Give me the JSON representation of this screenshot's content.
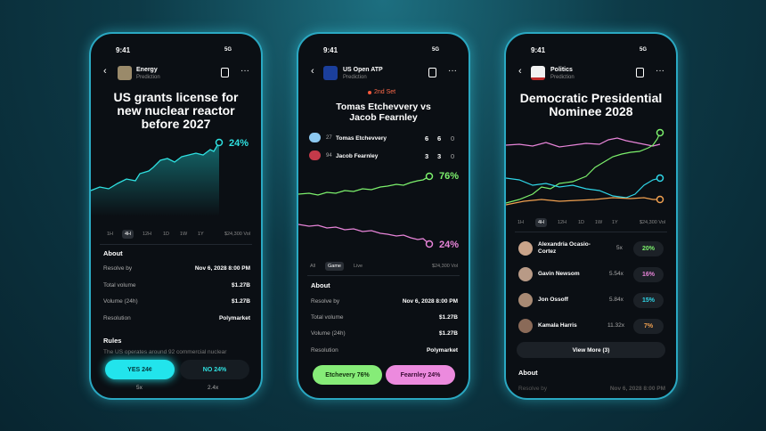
{
  "phones": [
    {
      "status": {
        "time": "9:41",
        "network": "5G"
      },
      "header": {
        "category": "Energy",
        "subtitle": "Prediction"
      },
      "title": "US grants license for new nuclear reactor before 2027",
      "chance": "24%",
      "tabs": [
        "1H",
        "4H",
        "12H",
        "1D",
        "1W",
        "1Y"
      ],
      "volume": "$24,300 Vol",
      "about": {
        "heading": "About",
        "rows": [
          [
            "Resolve by",
            "Nov 6, 2028 8:00 PM"
          ],
          [
            "Total volume",
            "$1.27B"
          ],
          [
            "Volume (24h)",
            "$1.27B"
          ],
          [
            "Resolution",
            "Polymarket"
          ]
        ]
      },
      "rules": {
        "heading": "Rules",
        "text": "The US operates around 92 commercial nuclear"
      },
      "buttons": [
        {
          "label": "YES 24¢",
          "multiplier": "5x"
        },
        {
          "label": "NO 24%",
          "multiplier": "2.4x"
        }
      ]
    },
    {
      "status": {
        "time": "9:41",
        "network": "5G"
      },
      "header": {
        "category": "US Open ATP",
        "subtitle": "Prediction"
      },
      "set": "2nd Set",
      "title": "Tomas Etchevvery vs Jacob Fearnley",
      "players": [
        {
          "rank": "27",
          "name": "Tomas Etchevvery",
          "scores": [
            "6",
            "6",
            "0"
          ]
        },
        {
          "rank": "94",
          "name": "Jacob Fearnley",
          "scores": [
            "3",
            "3",
            "0"
          ]
        }
      ],
      "chances": [
        "76%",
        "24%"
      ],
      "tabs": [
        "All",
        "Game",
        "Live"
      ],
      "volume": "$24,300 Vol",
      "about": {
        "heading": "About",
        "rows": [
          [
            "Resolve by",
            "Nov 6, 2028 8:00 PM"
          ],
          [
            "Total volume",
            "$1.27B"
          ],
          [
            "Volume (24h)",
            "$1.27B"
          ],
          [
            "Resolution",
            "Polymarket"
          ]
        ]
      },
      "buttons": [
        "Etchevery 76%",
        "Fearnley 24%"
      ]
    },
    {
      "status": {
        "time": "9:41",
        "network": "5G"
      },
      "header": {
        "category": "Politics",
        "subtitle": "Prediction"
      },
      "title": "Democratic Presidential Nominee 2028",
      "tabs": [
        "1H",
        "4H",
        "12H",
        "1D",
        "1W",
        "1Y"
      ],
      "volume": "$24,300 Vol",
      "candidates": [
        {
          "name": "Alexandria Ocasio-Cortez",
          "multiplier": "5x",
          "chance": "20%"
        },
        {
          "name": "Gavin Newsom",
          "multiplier": "5.54x",
          "chance": "16%"
        },
        {
          "name": "Jon Ossoff",
          "multiplier": "5.84x",
          "chance": "15%"
        },
        {
          "name": "Kamala Harris",
          "multiplier": "11.32x",
          "chance": "7%"
        }
      ],
      "view_more": "View More (3)",
      "about": {
        "heading": "About",
        "rows": [
          [
            "Resolve by",
            "Nov 6, 2028 8:00 PM"
          ]
        ]
      }
    }
  ]
}
